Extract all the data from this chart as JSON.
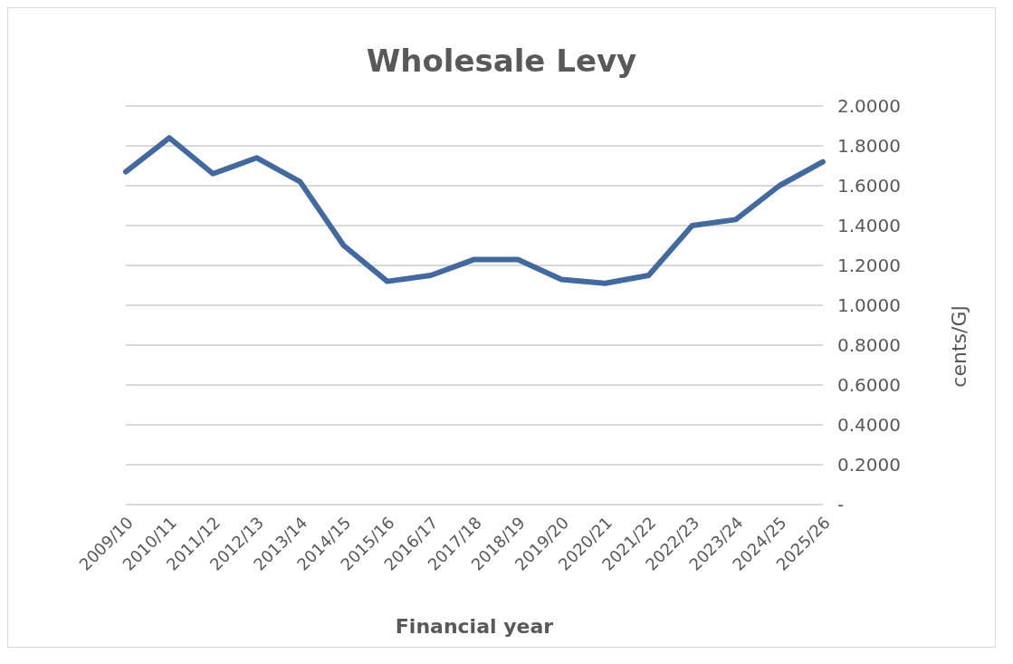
{
  "chart_data": {
    "type": "line",
    "title": "Wholesale Levy",
    "xlabel": "Financial year",
    "ylabel": "cents/GJ",
    "categories": [
      "2009/10",
      "2010/11",
      "2011/12",
      "2012/13",
      "2013/14",
      "2014/15",
      "2015/16",
      "2016/17",
      "2017/18",
      "2018/19",
      "2019/20",
      "2020/21",
      "2021/22",
      "2022/23",
      "2023/24",
      "2024/25",
      "2025/26"
    ],
    "series": [
      {
        "color": "#44699f",
        "values": [
          1.67,
          1.84,
          1.66,
          1.74,
          1.62,
          1.3,
          1.12,
          1.15,
          1.23,
          1.23,
          1.13,
          1.11,
          1.15,
          1.4,
          1.43,
          1.6,
          1.72
        ]
      }
    ],
    "ylim": [
      0,
      2
    ],
    "yticks": [
      {
        "value": 0,
        "label": "-"
      },
      {
        "value": 0.2,
        "label": "0.2000"
      },
      {
        "value": 0.4,
        "label": "0.4000"
      },
      {
        "value": 0.6,
        "label": "0.6000"
      },
      {
        "value": 0.8,
        "label": "0.8000"
      },
      {
        "value": 1,
        "label": "1.0000"
      },
      {
        "value": 1.2,
        "label": "1.2000"
      },
      {
        "value": 1.4,
        "label": "1.4000"
      },
      {
        "value": 1.6,
        "label": "1.6000"
      },
      {
        "value": 1.8,
        "label": "1.8000"
      },
      {
        "value": 2,
        "label": "2.0000"
      }
    ],
    "grid": "y",
    "legend": false,
    "marker": "none",
    "line_style": "solid"
  }
}
